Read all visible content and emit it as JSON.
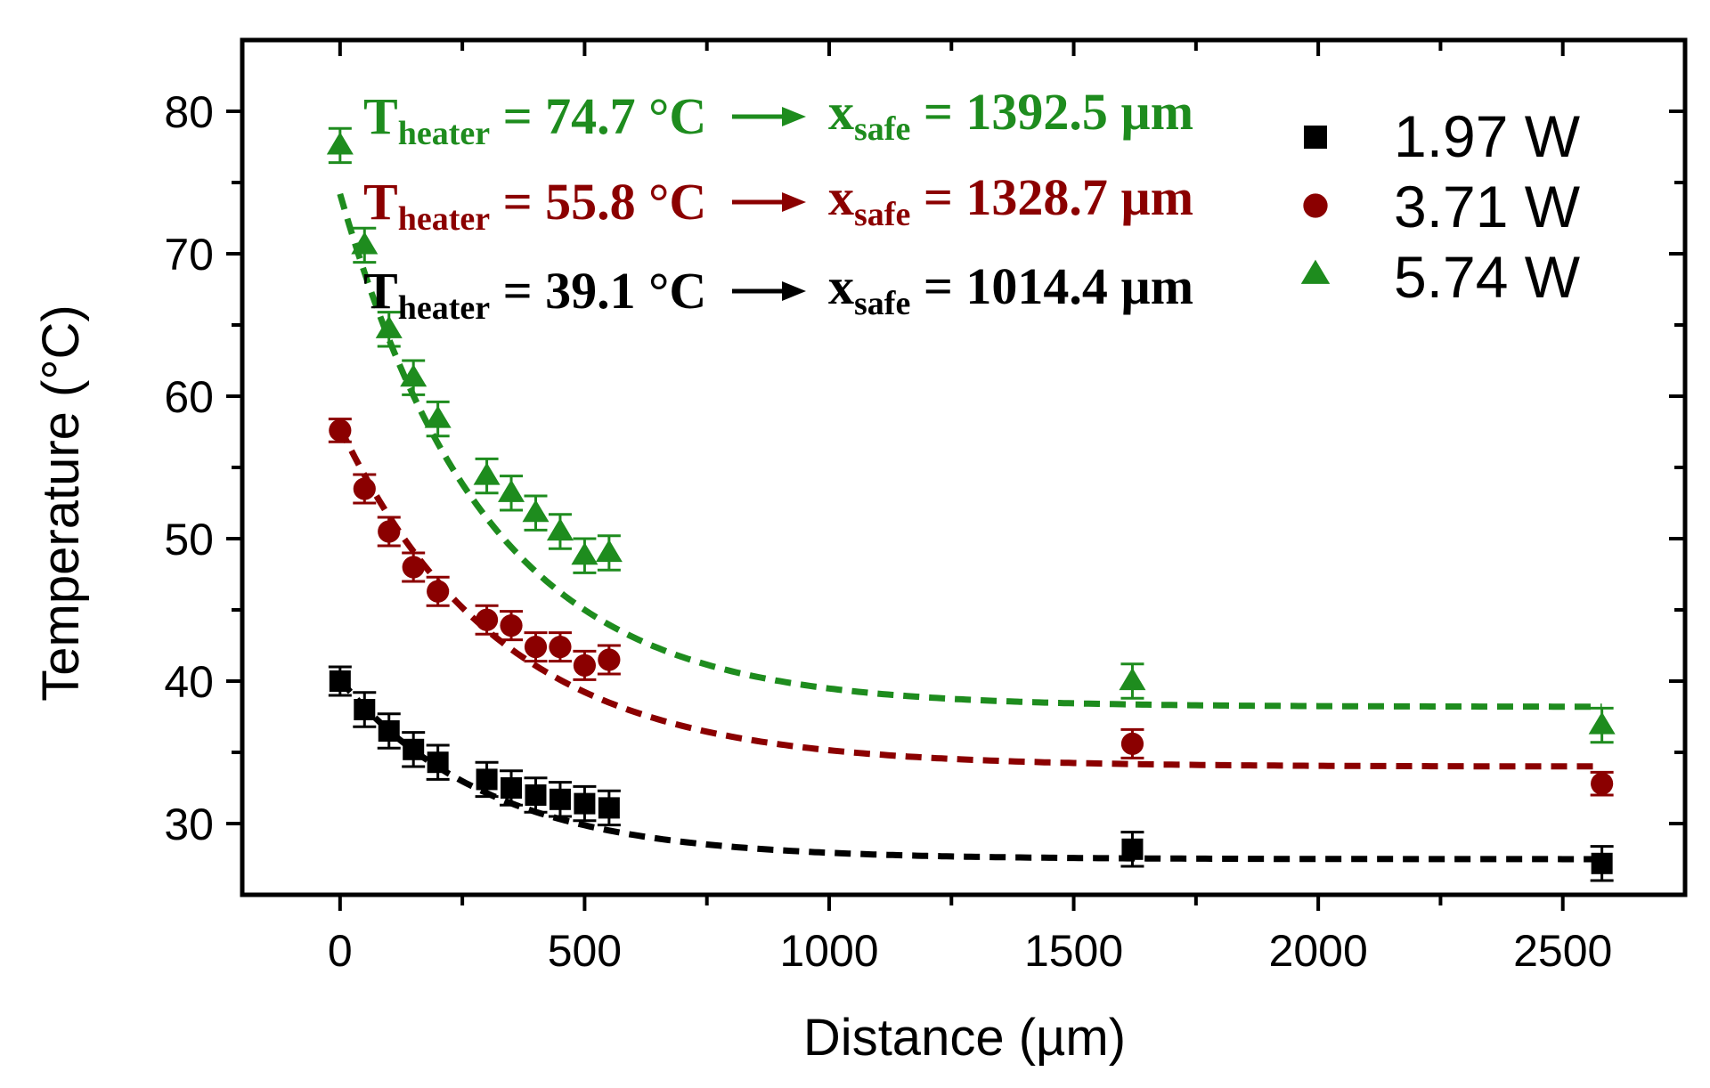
{
  "chart_data": {
    "type": "scatter",
    "xlabel": "Distance (µm)",
    "ylabel": "Temperature (°C)",
    "xlim": [
      -200,
      2750
    ],
    "ylim": [
      25,
      85
    ],
    "xticks": [
      0,
      500,
      1000,
      1500,
      2000,
      2500
    ],
    "yticks": [
      30,
      40,
      50,
      60,
      70,
      80
    ],
    "x_minor_step": 250,
    "y_minor_step": 5,
    "legend_position": "top-right",
    "series": [
      {
        "name": "1.97 W",
        "marker": "square",
        "color": "#000000",
        "points": [
          {
            "x": 0,
            "y": 40.0,
            "err": 1.0
          },
          {
            "x": 50,
            "y": 38.0,
            "err": 1.2
          },
          {
            "x": 100,
            "y": 36.5,
            "err": 1.2
          },
          {
            "x": 150,
            "y": 35.2,
            "err": 1.2
          },
          {
            "x": 200,
            "y": 34.3,
            "err": 1.2
          },
          {
            "x": 300,
            "y": 33.1,
            "err": 1.2
          },
          {
            "x": 350,
            "y": 32.5,
            "err": 1.2
          },
          {
            "x": 400,
            "y": 32.0,
            "err": 1.2
          },
          {
            "x": 450,
            "y": 31.7,
            "err": 1.2
          },
          {
            "x": 500,
            "y": 31.4,
            "err": 1.2
          },
          {
            "x": 550,
            "y": 31.1,
            "err": 1.2
          },
          {
            "x": 1620,
            "y": 28.2,
            "err": 1.2
          },
          {
            "x": 2580,
            "y": 27.2,
            "err": 1.2
          }
        ],
        "fit": {
          "A": 12.6,
          "tau": 300,
          "C": 27.5
        }
      },
      {
        "name": "3.71 W",
        "marker": "circle",
        "color": "#8b0000",
        "points": [
          {
            "x": 0,
            "y": 57.6,
            "err": 0.8
          },
          {
            "x": 50,
            "y": 53.5,
            "err": 1.0
          },
          {
            "x": 100,
            "y": 50.5,
            "err": 1.0
          },
          {
            "x": 150,
            "y": 48.0,
            "err": 1.0
          },
          {
            "x": 200,
            "y": 46.3,
            "err": 1.0
          },
          {
            "x": 300,
            "y": 44.3,
            "err": 1.0
          },
          {
            "x": 350,
            "y": 43.9,
            "err": 1.0
          },
          {
            "x": 400,
            "y": 42.4,
            "err": 1.0
          },
          {
            "x": 450,
            "y": 42.4,
            "err": 1.0
          },
          {
            "x": 500,
            "y": 41.1,
            "err": 1.0
          },
          {
            "x": 550,
            "y": 41.5,
            "err": 1.0
          },
          {
            "x": 1620,
            "y": 35.6,
            "err": 1.0
          },
          {
            "x": 2580,
            "y": 32.8,
            "err": 0.8
          }
        ],
        "fit": {
          "A": 23.8,
          "tau": 330,
          "C": 34.0
        }
      },
      {
        "name": "5.74 W",
        "marker": "triangle",
        "color": "#1e8c1e",
        "points": [
          {
            "x": 0,
            "y": 77.6,
            "err": 1.2
          },
          {
            "x": 50,
            "y": 70.6,
            "err": 1.2
          },
          {
            "x": 100,
            "y": 64.7,
            "err": 1.2
          },
          {
            "x": 150,
            "y": 61.3,
            "err": 1.2
          },
          {
            "x": 200,
            "y": 58.4,
            "err": 1.2
          },
          {
            "x": 300,
            "y": 54.4,
            "err": 1.2
          },
          {
            "x": 350,
            "y": 53.2,
            "err": 1.2
          },
          {
            "x": 400,
            "y": 51.8,
            "err": 1.2
          },
          {
            "x": 450,
            "y": 50.5,
            "err": 1.2
          },
          {
            "x": 500,
            "y": 48.8,
            "err": 1.2
          },
          {
            "x": 550,
            "y": 49.0,
            "err": 1.2
          },
          {
            "x": 1620,
            "y": 40.0,
            "err": 1.2
          },
          {
            "x": 2580,
            "y": 36.9,
            "err": 1.2
          }
        ],
        "fit": {
          "A": 36.0,
          "tau": 300,
          "C": 38.2
        }
      }
    ],
    "annotations": [
      {
        "color": "#1e8c1e",
        "t_main": "T",
        "t_sub": "heater",
        "t_value": " = 74.7 °C",
        "x_main": "x",
        "x_sub": "safe",
        "x_value": " = 1392.5 µm"
      },
      {
        "color": "#8b0000",
        "t_main": "T",
        "t_sub": "heater",
        "t_value": " = 55.8 °C",
        "x_main": "x",
        "x_sub": "safe",
        "x_value": " = 1328.7 µm"
      },
      {
        "color": "#000000",
        "t_main": "T",
        "t_sub": "heater",
        "t_value": " = 39.1 °C",
        "x_main": "x",
        "x_sub": "safe",
        "x_value": " = 1014.4 µm"
      }
    ]
  }
}
